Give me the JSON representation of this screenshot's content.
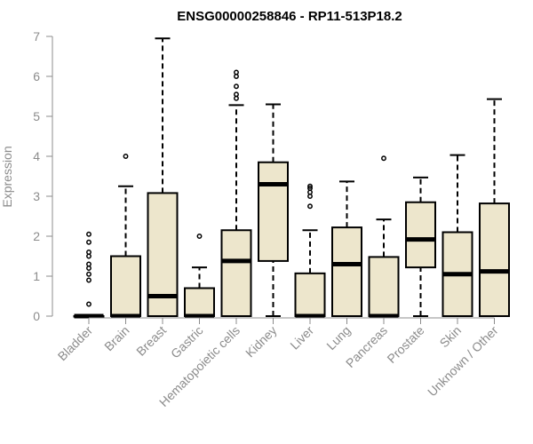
{
  "chart_data": {
    "type": "box",
    "title": "ENSG00000258846 - RP11-513P18.2",
    "ylabel": "Expression",
    "xlabel": "",
    "ylim": [
      0,
      7
    ],
    "yticks": [
      0,
      1,
      2,
      3,
      4,
      5,
      6,
      7
    ],
    "grid": false,
    "legend": "none",
    "box_fill": "#ede6cc",
    "box_stroke": "#000000",
    "axis_color": "#8c8c8c",
    "boxes": [
      {
        "category": "Bladder",
        "min": 0,
        "q1": 0,
        "median": 0,
        "q3": 0,
        "max": 0,
        "outliers": [
          0.3,
          0.9,
          1.05,
          1.2,
          1.3,
          1.5,
          1.6,
          1.85,
          2.05
        ]
      },
      {
        "category": "Brain",
        "min": 0,
        "q1": 0,
        "median": 0,
        "q3": 1.5,
        "max": 3.25,
        "outliers": [
          4.0
        ]
      },
      {
        "category": "Breast",
        "min": 0,
        "q1": 0,
        "median": 0.5,
        "q3": 3.08,
        "max": 6.95,
        "outliers": []
      },
      {
        "category": "Gastric",
        "min": 0,
        "q1": 0,
        "median": 0,
        "q3": 0.7,
        "max": 1.22,
        "outliers": [
          2.0
        ]
      },
      {
        "category": "Hematopoietic cells",
        "min": 0,
        "q1": 0,
        "median": 1.38,
        "q3": 2.15,
        "max": 5.28,
        "outliers": [
          5.45,
          5.55,
          5.75,
          6.0,
          6.1
        ]
      },
      {
        "category": "Kidney",
        "min": 0,
        "q1": 1.38,
        "median": 3.3,
        "q3": 3.85,
        "max": 5.3,
        "outliers": []
      },
      {
        "category": "Liver",
        "min": 0,
        "q1": 0,
        "median": 0,
        "q3": 1.07,
        "max": 2.15,
        "outliers": [
          2.75,
          3.0,
          3.1,
          3.2,
          3.25
        ]
      },
      {
        "category": "Lung",
        "min": 0,
        "q1": 0,
        "median": 1.3,
        "q3": 2.22,
        "max": 3.37,
        "outliers": []
      },
      {
        "category": "Pancreas",
        "min": 0,
        "q1": 0,
        "median": 0,
        "q3": 1.48,
        "max": 2.42,
        "outliers": [
          3.95
        ]
      },
      {
        "category": "Prostate",
        "min": 0,
        "q1": 1.22,
        "median": 1.92,
        "q3": 2.85,
        "max": 3.47,
        "outliers": []
      },
      {
        "category": "Skin",
        "min": 0,
        "q1": 0,
        "median": 1.05,
        "q3": 2.1,
        "max": 4.03,
        "outliers": []
      },
      {
        "category": "Unknown / Other",
        "min": 0,
        "q1": 0,
        "median": 1.12,
        "q3": 2.82,
        "max": 5.43,
        "outliers": []
      }
    ]
  }
}
